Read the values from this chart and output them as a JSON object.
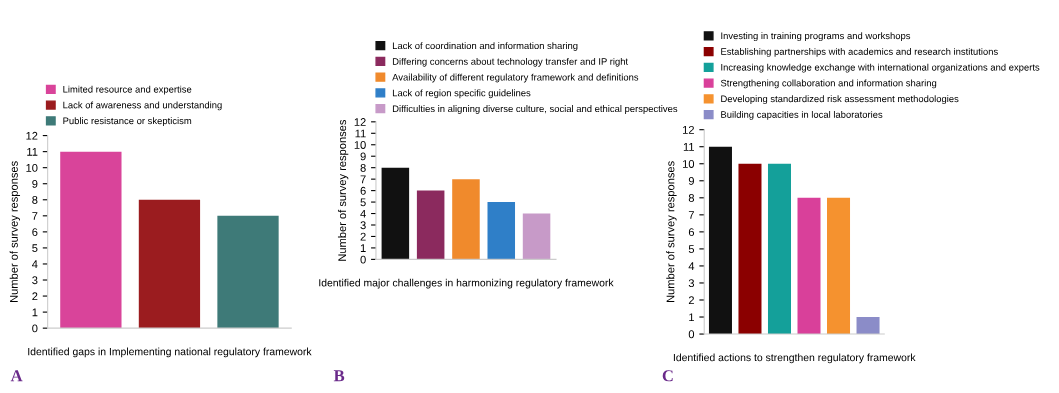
{
  "chart_data": [
    {
      "type": "bar",
      "xlabel": "Identified gaps in Implementing national regulatory framework",
      "ylabel": "Number of survey responses",
      "categories": [
        null,
        null,
        null
      ],
      "series": [
        {
          "name": "Limited resource and expertise",
          "color": "#d9449a",
          "values": [
            11,
            null,
            null
          ]
        },
        {
          "name": "Lack of awareness and understanding",
          "color": "#9b1c1f",
          "values": [
            null,
            8,
            null
          ]
        },
        {
          "name": "Public resistance or skepticism",
          "color": "#3e7a78",
          "values": [
            null,
            null,
            7
          ]
        }
      ],
      "ylim": [
        0,
        12
      ],
      "yticks": [
        0,
        1,
        2,
        3,
        4,
        5,
        6,
        7,
        8,
        9,
        10,
        11,
        12
      ],
      "tick_labels": "y",
      "legend": "top",
      "grid": false,
      "annotations": [
        "A"
      ]
    },
    {
      "type": "bar",
      "xlabel": "Identified major challenges in harmonizing regulatory framework",
      "ylabel": "Number of survey responses",
      "categories": [
        null,
        null,
        null,
        null,
        null
      ],
      "series": [
        {
          "name": "Lack of coordination and information sharing",
          "color": "#111111",
          "values": [
            8,
            null,
            null,
            null,
            null
          ]
        },
        {
          "name": "Differing concerns about technology transfer and IP right",
          "color": "#8b2a5e",
          "values": [
            null,
            6,
            null,
            null,
            null
          ]
        },
        {
          "name": "Availability of different regulatory framework and definitions",
          "color": "#f08a2c",
          "values": [
            null,
            null,
            7,
            null,
            null
          ]
        },
        {
          "name": "Lack of region specific guidelines",
          "color": "#2f7fc8",
          "values": [
            null,
            null,
            null,
            5,
            null
          ]
        },
        {
          "name": "Difficulties in aligning diverse culture, social and ethical perspectives",
          "color": "#c79ac8",
          "values": [
            null,
            null,
            null,
            null,
            4
          ]
        }
      ],
      "ylim": [
        0,
        12
      ],
      "yticks": [
        0,
        1,
        2,
        3,
        4,
        5,
        6,
        7,
        8,
        9,
        10,
        11,
        12
      ],
      "tick_labels": "y",
      "legend": "top",
      "grid": false,
      "annotations": [
        "B"
      ]
    },
    {
      "type": "bar",
      "xlabel": "Identified actions to strengthen regulatory framework",
      "ylabel": "Number of survey responses",
      "categories": [
        null,
        null,
        null,
        null,
        null,
        null
      ],
      "series": [
        {
          "name": "Investing in training programs and workshops",
          "color": "#111111",
          "values": [
            11,
            null,
            null,
            null,
            null,
            null
          ]
        },
        {
          "name": "Establishing partnerships with academics and research institutions",
          "color": "#8b0000",
          "values": [
            null,
            10,
            null,
            null,
            null,
            null
          ]
        },
        {
          "name": "Increasing knowledge exchange with international organizations and experts",
          "color": "#14a09a",
          "values": [
            null,
            null,
            10,
            null,
            null,
            null
          ]
        },
        {
          "name": "Strengthening collaboration and information sharing",
          "color": "#d9409a",
          "values": [
            null,
            null,
            null,
            8,
            null,
            null
          ]
        },
        {
          "name": "Developing standardized risk assessment methodologies",
          "color": "#f5922f",
          "values": [
            null,
            null,
            null,
            null,
            8,
            null
          ]
        },
        {
          "name": "Building capacities in local laboratories",
          "color": "#8b8cc8",
          "values": [
            null,
            null,
            null,
            null,
            null,
            1
          ]
        }
      ],
      "ylim": [
        0,
        12
      ],
      "yticks": [
        0,
        1,
        2,
        3,
        4,
        5,
        6,
        7,
        8,
        9,
        10,
        11,
        12
      ],
      "tick_labels": "y",
      "legend": "top",
      "grid": false,
      "annotations": [
        "C"
      ]
    }
  ]
}
